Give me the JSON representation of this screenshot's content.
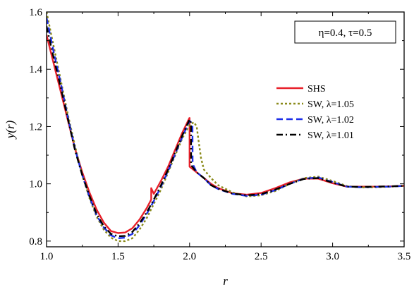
{
  "chart_data": {
    "type": "line",
    "xlabel": "r",
    "ylabel": "y(r)",
    "xlim": [
      1.0,
      3.5
    ],
    "ylim": [
      0.78,
      1.6
    ],
    "x_ticks": [
      {
        "value": 1.0,
        "label": "1.0"
      },
      {
        "value": 1.5,
        "label": "1.5"
      },
      {
        "value": 2.0,
        "label": "2.0"
      },
      {
        "value": 2.5,
        "label": "2.5"
      },
      {
        "value": 3.0,
        "label": "3.0"
      },
      {
        "value": 3.5,
        "label": "3.5"
      }
    ],
    "y_ticks": [
      {
        "value": 0.8,
        "label": "0.8"
      },
      {
        "value": 1.0,
        "label": "1.0"
      },
      {
        "value": 1.2,
        "label": "1.2"
      },
      {
        "value": 1.4,
        "label": "1.4"
      },
      {
        "value": 1.6,
        "label": "1.6"
      }
    ],
    "annotation": "η=0.4, τ=0.5",
    "legend_position": "right",
    "grid": false,
    "series": [
      {
        "name": "SHS",
        "color": "#e8202a",
        "dash": "solid",
        "x": [
          1.0,
          1.05,
          1.1,
          1.15,
          1.2,
          1.25,
          1.3,
          1.35,
          1.4,
          1.45,
          1.5,
          1.55,
          1.6,
          1.65,
          1.7,
          1.732,
          1.732,
          1.75,
          1.8,
          1.85,
          1.9,
          1.95,
          1.999,
          2.0,
          2.0,
          2.05,
          2.1,
          2.15,
          2.2,
          2.3,
          2.4,
          2.5,
          2.6,
          2.7,
          2.8,
          2.9,
          3.0,
          3.1,
          3.2,
          3.3,
          3.4,
          3.5
        ],
        "y": [
          1.52,
          1.42,
          1.32,
          1.22,
          1.12,
          1.04,
          0.97,
          0.91,
          0.865,
          0.835,
          0.828,
          0.83,
          0.845,
          0.875,
          0.915,
          0.945,
          0.985,
          0.965,
          1.01,
          1.06,
          1.12,
          1.18,
          1.23,
          1.23,
          1.06,
          1.04,
          1.02,
          1.0,
          0.985,
          0.967,
          0.962,
          0.968,
          0.985,
          1.005,
          1.018,
          1.018,
          1.002,
          0.99,
          0.99,
          0.99,
          0.991,
          0.993
        ]
      },
      {
        "name": "SW, λ=1.05",
        "color": "#8a8a1a",
        "dash": "dotted",
        "x": [
          1.0,
          1.05,
          1.1,
          1.15,
          1.2,
          1.25,
          1.3,
          1.35,
          1.4,
          1.45,
          1.5,
          1.55,
          1.6,
          1.65,
          1.7,
          1.75,
          1.8,
          1.85,
          1.9,
          1.95,
          2.0,
          2.03,
          2.05,
          2.06,
          2.08,
          2.1,
          2.15,
          2.2,
          2.3,
          2.4,
          2.5,
          2.6,
          2.7,
          2.8,
          2.9,
          3.0,
          3.1,
          3.2,
          3.3,
          3.4,
          3.5
        ],
        "y": [
          1.6,
          1.48,
          1.36,
          1.24,
          1.13,
          1.03,
          0.95,
          0.885,
          0.84,
          0.812,
          0.8,
          0.8,
          0.81,
          0.84,
          0.88,
          0.93,
          0.98,
          1.04,
          1.1,
          1.16,
          1.205,
          1.215,
          1.2,
          1.16,
          1.09,
          1.05,
          1.02,
          0.995,
          0.97,
          0.956,
          0.96,
          0.975,
          1.0,
          1.02,
          1.025,
          1.01,
          0.992,
          0.987,
          0.988,
          0.99,
          0.993
        ]
      },
      {
        "name": "SW, λ=1.02",
        "color": "#1c2ee8",
        "dash": "dashed",
        "x": [
          1.0,
          1.05,
          1.1,
          1.15,
          1.2,
          1.25,
          1.3,
          1.35,
          1.4,
          1.45,
          1.5,
          1.55,
          1.6,
          1.65,
          1.7,
          1.75,
          1.8,
          1.85,
          1.9,
          1.95,
          2.0,
          2.01,
          2.02,
          2.021,
          2.05,
          2.1,
          2.15,
          2.2,
          2.3,
          2.4,
          2.5,
          2.6,
          2.7,
          2.8,
          2.9,
          3.0,
          3.1,
          3.2,
          3.3,
          3.4,
          3.5
        ],
        "y": [
          1.58,
          1.46,
          1.35,
          1.23,
          1.12,
          1.03,
          0.955,
          0.89,
          0.848,
          0.82,
          0.81,
          0.812,
          0.825,
          0.855,
          0.895,
          0.94,
          0.99,
          1.045,
          1.105,
          1.165,
          1.22,
          1.215,
          1.2,
          1.07,
          1.04,
          1.02,
          0.995,
          0.982,
          0.965,
          0.958,
          0.962,
          0.978,
          1.0,
          1.018,
          1.022,
          1.006,
          0.99,
          0.988,
          0.989,
          0.99,
          0.993
        ]
      },
      {
        "name": "SW, λ=1.01",
        "color": "#000000",
        "dash": "dashdot",
        "x": [
          1.0,
          1.05,
          1.1,
          1.15,
          1.2,
          1.25,
          1.3,
          1.35,
          1.4,
          1.45,
          1.5,
          1.55,
          1.6,
          1.65,
          1.7,
          1.75,
          1.8,
          1.85,
          1.9,
          1.95,
          2.0,
          2.005,
          2.01,
          2.011,
          2.05,
          2.1,
          2.15,
          2.2,
          2.3,
          2.4,
          2.5,
          2.6,
          2.7,
          2.8,
          2.9,
          3.0,
          3.1,
          3.2,
          3.3,
          3.4,
          3.5
        ],
        "y": [
          1.55,
          1.44,
          1.335,
          1.225,
          1.115,
          1.03,
          0.958,
          0.895,
          0.852,
          0.825,
          0.817,
          0.818,
          0.832,
          0.862,
          0.9,
          0.945,
          0.995,
          1.05,
          1.11,
          1.17,
          1.225,
          1.22,
          1.21,
          1.065,
          1.04,
          1.02,
          0.995,
          0.983,
          0.966,
          0.96,
          0.964,
          0.98,
          1.0,
          1.017,
          1.02,
          1.004,
          0.99,
          0.989,
          0.99,
          0.991,
          0.993
        ]
      }
    ]
  }
}
